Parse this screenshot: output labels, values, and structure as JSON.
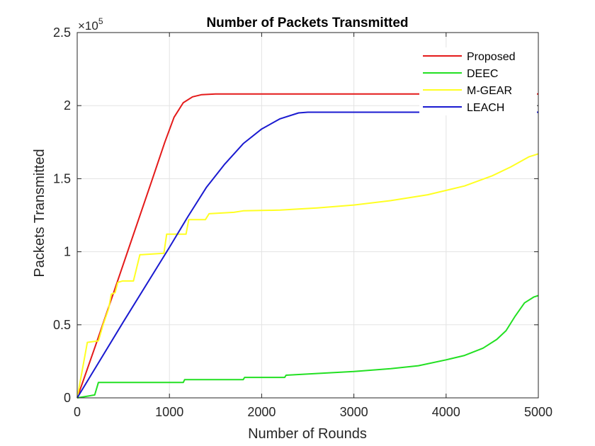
{
  "chart_data": {
    "type": "line",
    "title": "Number of Packets Transmitted",
    "xlabel": "Number of Rounds",
    "ylabel": "Packets Transmitted",
    "y_multiplier_base": "×10",
    "y_multiplier_exponent": "5",
    "xlim": [
      0,
      5000
    ],
    "ylim": [
      0,
      2.5
    ],
    "xticks": [
      0,
      1000,
      2000,
      3000,
      4000,
      5000
    ],
    "xtick_labels": [
      "0",
      "1000",
      "2000",
      "3000",
      "4000",
      "5000"
    ],
    "yticks": [
      0,
      0.5,
      1,
      1.5,
      2,
      2.5
    ],
    "ytick_labels": [
      "0",
      "0.5",
      "1",
      "1.5",
      "2",
      "2.5"
    ],
    "grid": true,
    "legend_position": "top-right",
    "series": [
      {
        "name": "Proposed",
        "color": "#e41a1a",
        "x": [
          0,
          200,
          400,
          600,
          800,
          950,
          1050,
          1150,
          1250,
          1350,
          1500,
          2000,
          3000,
          4000,
          5000
        ],
        "y": [
          0,
          0.36,
          0.73,
          1.1,
          1.47,
          1.75,
          1.92,
          2.02,
          2.06,
          2.075,
          2.08,
          2.08,
          2.08,
          2.08,
          2.08
        ]
      },
      {
        "name": "DEEC",
        "color": "#22e022",
        "x": [
          0,
          190,
          230,
          1150,
          1165,
          1800,
          1815,
          2250,
          2265,
          2700,
          3000,
          3400,
          3700,
          4000,
          4200,
          4400,
          4550,
          4650,
          4750,
          4850,
          4950,
          5000
        ],
        "y": [
          0,
          0.02,
          0.105,
          0.105,
          0.125,
          0.125,
          0.14,
          0.14,
          0.155,
          0.17,
          0.18,
          0.2,
          0.22,
          0.26,
          0.29,
          0.34,
          0.4,
          0.46,
          0.56,
          0.65,
          0.69,
          0.7
        ]
      },
      {
        "name": "M-GEAR",
        "color": "#ffff22",
        "x": [
          0,
          110,
          230,
          280,
          340,
          370,
          410,
          440,
          490,
          610,
          680,
          700,
          940,
          970,
          1180,
          1210,
          1390,
          1430,
          1700,
          1800,
          2200,
          2600,
          3000,
          3400,
          3800,
          4200,
          4500,
          4700,
          4900,
          5000
        ],
        "y": [
          0,
          0.38,
          0.39,
          0.5,
          0.61,
          0.71,
          0.72,
          0.79,
          0.8,
          0.8,
          0.98,
          0.98,
          0.99,
          1.12,
          1.12,
          1.22,
          1.22,
          1.26,
          1.27,
          1.28,
          1.285,
          1.3,
          1.32,
          1.35,
          1.39,
          1.45,
          1.52,
          1.58,
          1.65,
          1.67
        ]
      },
      {
        "name": "LEACH",
        "color": "#1a1ad0",
        "x": [
          0,
          500,
          1000,
          1200,
          1400,
          1600,
          1800,
          2000,
          2200,
          2400,
          2500,
          3000,
          4000,
          5000
        ],
        "y": [
          0,
          0.52,
          1.03,
          1.24,
          1.44,
          1.6,
          1.74,
          1.84,
          1.91,
          1.95,
          1.955,
          1.955,
          1.955,
          1.955
        ]
      }
    ]
  }
}
